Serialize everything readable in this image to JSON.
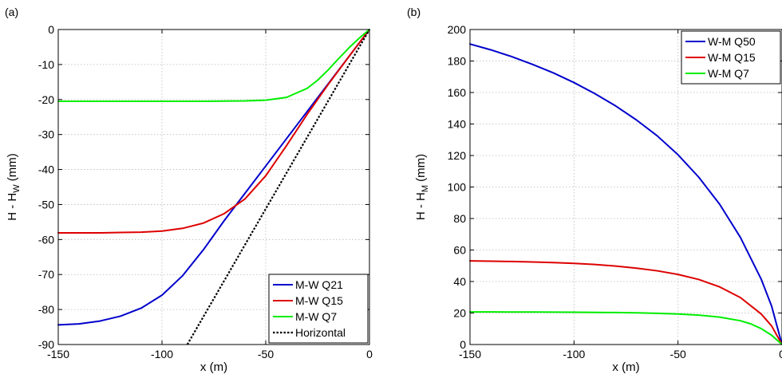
{
  "chart_data": [
    {
      "panel_label": "(a)",
      "type": "line",
      "xlabel": "x (m)",
      "ylabel": "H - H",
      "ylabel_sub": "W",
      "ylabel_suffix": " (mm)",
      "xlim": [
        -150,
        0
      ],
      "ylim": [
        -90,
        0
      ],
      "xticks": [
        -150,
        -100,
        -50,
        0
      ],
      "yticks": [
        0,
        -10,
        -20,
        -30,
        -40,
        -50,
        -60,
        -70,
        -80,
        -90
      ],
      "grid": true,
      "legend_position": "bottom-right",
      "series": [
        {
          "name": "M-W Q21",
          "color": "#0000cc",
          "dash": "solid",
          "x": [
            -150,
            -140,
            -130,
            -120,
            -110,
            -100,
            -90,
            -80,
            -70,
            -60,
            -50,
            -40,
            -30,
            -20,
            -10,
            0
          ],
          "y": [
            -84.4,
            -84.1,
            -83.3,
            -81.9,
            -79.6,
            -75.9,
            -70.3,
            -62.9,
            -54.6,
            -46.8,
            -39.0,
            -31.2,
            -23.4,
            -15.6,
            -7.8,
            0
          ]
        },
        {
          "name": "M-W Q15",
          "color": "#dd0000",
          "dash": "solid",
          "x": [
            -150,
            -140,
            -130,
            -120,
            -110,
            -100,
            -90,
            -80,
            -70,
            -60,
            -50,
            -40,
            -30,
            -20,
            -10,
            0
          ],
          "y": [
            -58.1,
            -58.1,
            -58.1,
            -58.0,
            -57.9,
            -57.6,
            -56.8,
            -55.3,
            -52.6,
            -48.4,
            -41.8,
            -33.2,
            -24.2,
            -15.8,
            -7.8,
            0
          ]
        },
        {
          "name": "M-W Q7",
          "color": "#00ee00",
          "dash": "solid",
          "x": [
            -150,
            -120,
            -100,
            -80,
            -60,
            -50,
            -40,
            -30,
            -25,
            -20,
            -15,
            -10,
            -5,
            0
          ],
          "y": [
            -20.5,
            -20.5,
            -20.5,
            -20.5,
            -20.4,
            -20.2,
            -19.4,
            -16.8,
            -14.5,
            -11.6,
            -8.4,
            -5.3,
            -2.5,
            0
          ]
        },
        {
          "name": "Horizontal",
          "color": "#000000",
          "dash": "dotted",
          "x": [
            -87.8,
            0
          ],
          "y": [
            -90,
            0
          ]
        }
      ]
    },
    {
      "panel_label": "(b)",
      "type": "line",
      "xlabel": "x (m)",
      "ylabel": "H - H",
      "ylabel_sub": "M",
      "ylabel_suffix": " (mm)",
      "xlim": [
        -150,
        0
      ],
      "ylim": [
        0,
        200
      ],
      "xticks": [
        -150,
        -100,
        -50,
        0
      ],
      "yticks": [
        0,
        20,
        40,
        60,
        80,
        100,
        120,
        140,
        160,
        180,
        200
      ],
      "grid": true,
      "legend_position": "top-right",
      "series": [
        {
          "name": "W-M Q50",
          "color": "#0000cc",
          "dash": "solid",
          "x": [
            -150,
            -140,
            -130,
            -120,
            -110,
            -100,
            -90,
            -80,
            -70,
            -60,
            -50,
            -40,
            -30,
            -20,
            -10,
            -5,
            0
          ],
          "y": [
            190.8,
            187.1,
            182.8,
            177.9,
            172.5,
            166.3,
            159.3,
            151.5,
            142.6,
            132.5,
            120.5,
            106.2,
            89.1,
            68.0,
            41.5,
            24.4,
            0
          ]
        },
        {
          "name": "W-M Q15",
          "color": "#dd0000",
          "dash": "solid",
          "x": [
            -150,
            -140,
            -130,
            -120,
            -110,
            -100,
            -90,
            -80,
            -70,
            -60,
            -50,
            -40,
            -30,
            -20,
            -10,
            -5,
            0
          ],
          "y": [
            53.1,
            52.9,
            52.7,
            52.4,
            52.0,
            51.5,
            50.8,
            49.8,
            48.5,
            46.8,
            44.5,
            41.3,
            36.6,
            29.8,
            19.4,
            11.8,
            0
          ]
        },
        {
          "name": "W-M Q7",
          "color": "#00ee00",
          "dash": "solid",
          "x": [
            -150,
            -140,
            -120,
            -100,
            -80,
            -70,
            -60,
            -50,
            -40,
            -30,
            -20,
            -15,
            -10,
            -5,
            0
          ],
          "y": [
            20.7,
            20.7,
            20.6,
            20.5,
            20.3,
            20.1,
            19.8,
            19.4,
            18.7,
            17.4,
            15.1,
            13.1,
            10.1,
            5.9,
            0
          ]
        }
      ]
    }
  ]
}
